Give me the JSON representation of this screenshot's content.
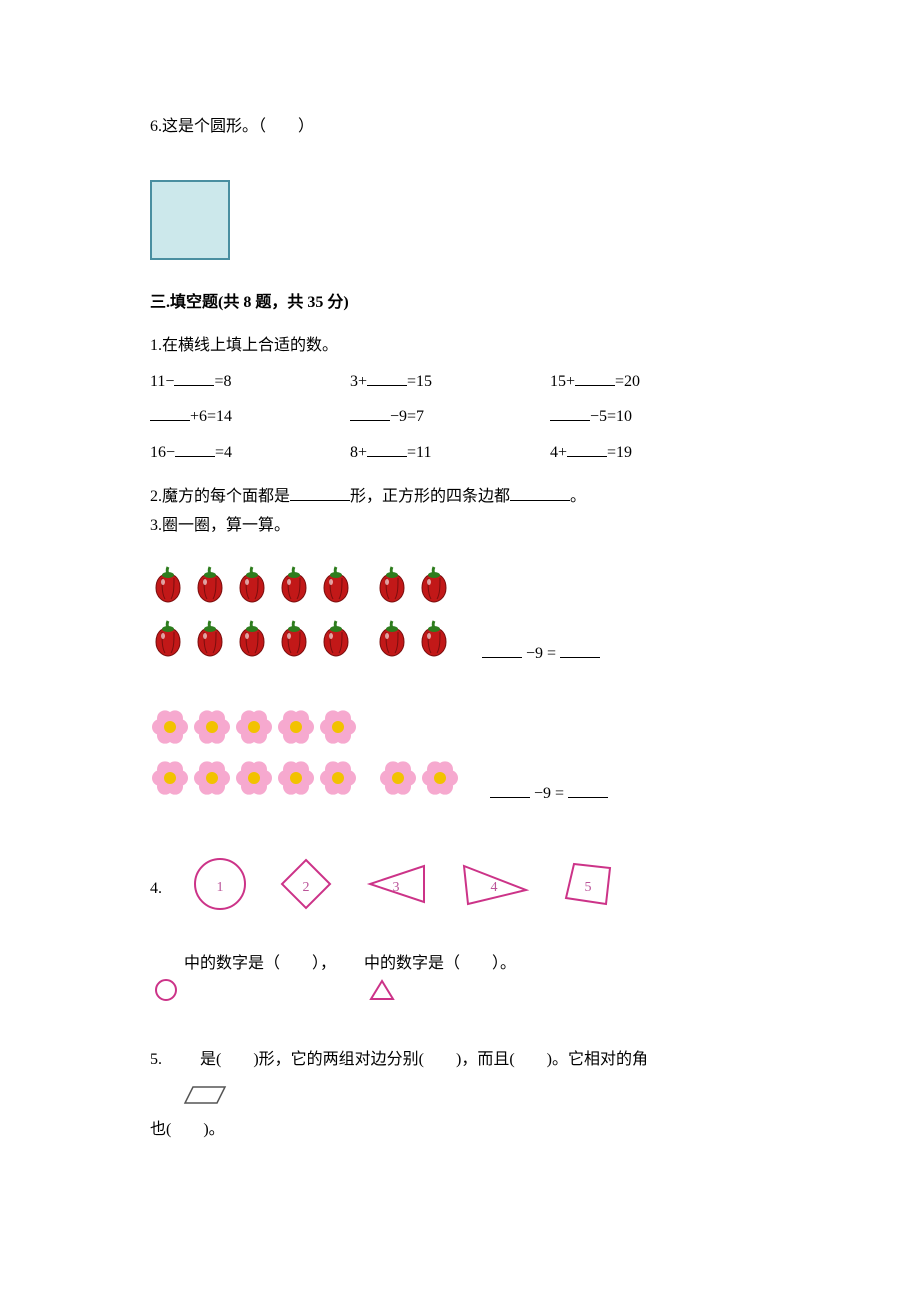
{
  "q6": {
    "text": "6.这是个圆形。（　　）"
  },
  "square": {
    "fill": "#cce8eb",
    "stroke": "#4a8fa0"
  },
  "section3": {
    "title": "三.填空题(共 8 题，共 35 分)"
  },
  "fill1": {
    "intro": "1.在横线上填上合适的数。",
    "rows": [
      {
        "a_pre": "11−",
        "a_post": "=8",
        "b_pre": "3+",
        "b_post": "=15",
        "c_pre": "15+",
        "c_post": "=20"
      },
      {
        "a_pre": "",
        "a_post": "+6=14",
        "b_pre": "",
        "b_post": "−9=7",
        "c_pre": "",
        "c_post": "−5=10"
      },
      {
        "a_pre": "16−",
        "a_post": "=4",
        "b_pre": "8+",
        "b_post": "=11",
        "c_pre": "4+",
        "c_post": "=19"
      }
    ]
  },
  "fill2": {
    "pre": "2.魔方的每个面都是",
    "mid": "形，正方形的四条边都",
    "post": "。"
  },
  "fill3": {
    "text": "3.圈一圈，算一算。",
    "pepper": {
      "color_body": "#c21818",
      "color_stem": "#2e7d1e",
      "group1_rows": [
        5,
        5
      ],
      "group2_rows": [
        2,
        2
      ],
      "eq": "−9 ="
    },
    "flower": {
      "petal": "#f6a9cf",
      "center": "#f2c200",
      "group1_rows": [
        5,
        5
      ],
      "group2_rows": [
        2
      ],
      "eq": "−9 ="
    }
  },
  "fill4": {
    "num": "4.",
    "shapes": [
      {
        "type": "circle",
        "label": "1"
      },
      {
        "type": "diamond",
        "label": "2"
      },
      {
        "type": "triangle-left",
        "label": "3"
      },
      {
        "type": "triangle-right",
        "label": "4"
      },
      {
        "type": "quad",
        "label": "5"
      }
    ],
    "shape_stroke": "#cc3388",
    "line_pre": "中的数字是（　　），",
    "line_mid": "中的数字是（　　）。"
  },
  "fill5": {
    "pre": "5.",
    "t1": "是(　　)形，它的两组对边分别(　　)，而且(　　)。它相对的角",
    "t2": "也(　　)。",
    "para_stroke": "#555555"
  }
}
